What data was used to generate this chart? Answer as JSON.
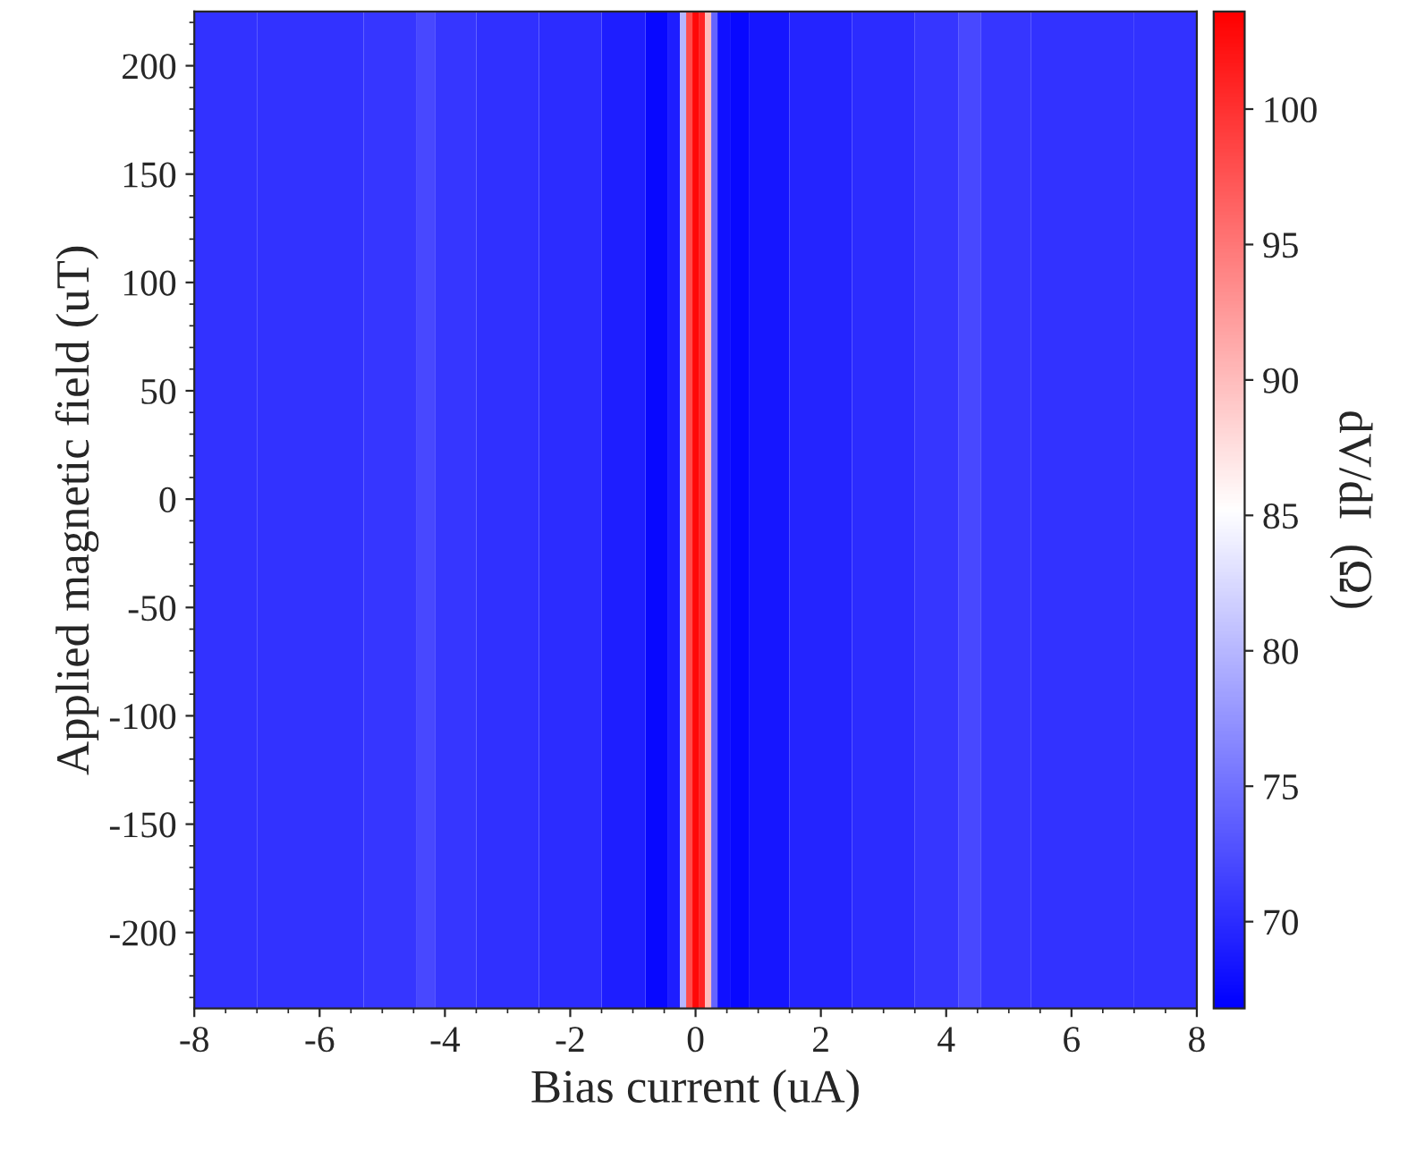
{
  "chart_data": {
    "type": "heatmap",
    "xlabel": "Bias current (uA)",
    "ylabel": "Applied magnetic field (uT)",
    "clabel": "dV/dI  (Ω)",
    "x": [
      -8,
      -6,
      -4.6,
      -4.3,
      -4.0,
      -3,
      -2,
      -1,
      -0.6,
      -0.3,
      -0.2,
      -0.1,
      0,
      0.1,
      0.2,
      0.3,
      0.4,
      0.7,
      1,
      2,
      3,
      4.0,
      4.4,
      4.7,
      6,
      8
    ],
    "cells": [
      [
        70.5,
        70.5,
        70.8,
        72,
        70.8,
        70.3,
        70,
        69,
        67.5,
        69,
        80,
        98,
        103,
        101,
        90,
        74,
        68,
        67.5,
        68.5,
        69.5,
        70,
        70.8,
        72,
        70.8,
        70.5,
        70.5
      ]
    ],
    "xlim": [
      -8,
      8
    ],
    "xticks": [
      -8,
      -6,
      -4,
      -2,
      0,
      2,
      4,
      6,
      8
    ],
    "ylim": [
      -235,
      225
    ],
    "yticks": [
      -200,
      -150,
      -100,
      -50,
      0,
      50,
      100,
      150,
      200
    ],
    "clim": [
      66.8,
      103.6
    ],
    "cticks": [
      70,
      75,
      80,
      85,
      90,
      95,
      100
    ]
  }
}
